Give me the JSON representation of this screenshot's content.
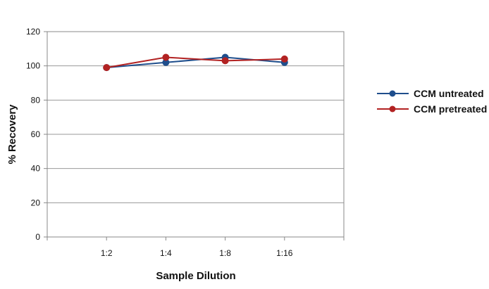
{
  "chart_data": {
    "type": "line",
    "title": "",
    "xlabel": "Sample Dilution",
    "ylabel": "% Recovery",
    "categories": [
      "1:2",
      "1:4",
      "1:8",
      "1:16"
    ],
    "ylim": [
      0,
      120
    ],
    "yticks": [
      0,
      20,
      40,
      60,
      80,
      100,
      120
    ],
    "grid": true,
    "legend_position": "right",
    "series": [
      {
        "name": "CCM untreated",
        "color": "#1f4e8c",
        "values": [
          99,
          102,
          105,
          102
        ]
      },
      {
        "name": "CCM pretreated",
        "color": "#b22222",
        "values": [
          99,
          105,
          103,
          104
        ]
      }
    ]
  }
}
